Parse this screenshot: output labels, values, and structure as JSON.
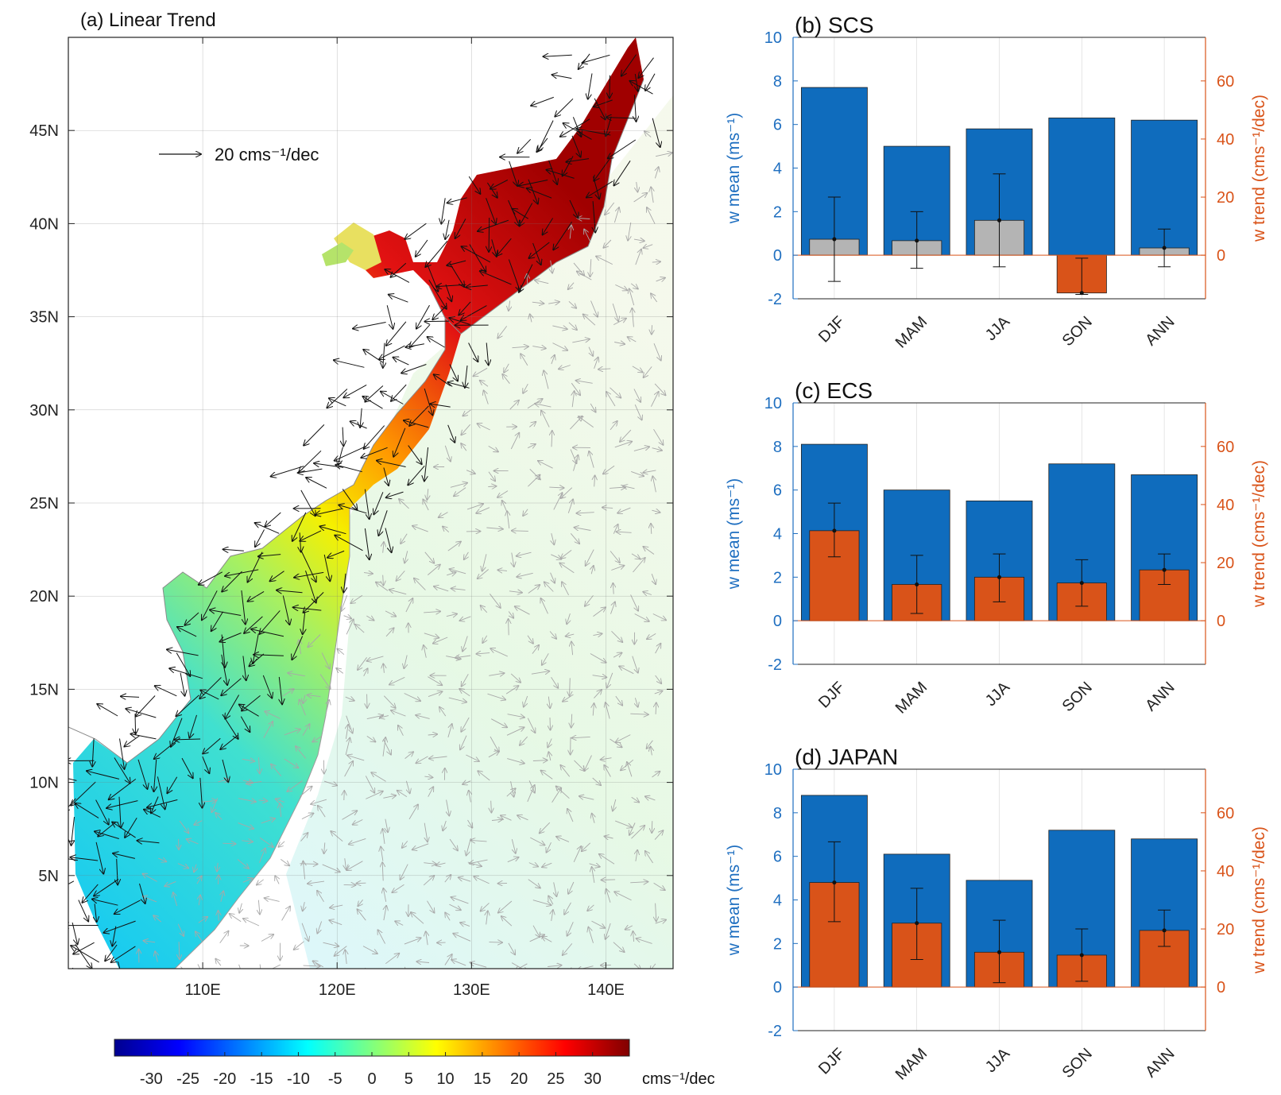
{
  "colors": {
    "mean_bar": "#0F6CBD",
    "trend_pos": "#D95319",
    "trend_insig": "#B4B4B4",
    "left_axis": "#1F6FC0",
    "right_axis": "#D95319"
  },
  "chart_data": [
    {
      "panel": "a",
      "type": "heatmap",
      "title": "(a) Linear Trend",
      "x_ticks": [
        "110E",
        "120E",
        "130E",
        "140E"
      ],
      "x_tick_values": [
        110,
        120,
        130,
        140
      ],
      "y_ticks": [
        "5N",
        "10N",
        "15N",
        "20N",
        "25N",
        "30N",
        "35N",
        "40N",
        "45N"
      ],
      "y_tick_values": [
        5,
        10,
        15,
        20,
        25,
        30,
        35,
        40,
        45
      ],
      "xlim": [
        100,
        145
      ],
      "ylim": [
        0,
        50
      ],
      "reference_vector": "20 cms⁻¹/dec",
      "colorbar": {
        "min": -35,
        "max": 35,
        "ticks": [
          -30,
          -25,
          -20,
          -15,
          -10,
          -5,
          0,
          5,
          10,
          15,
          20,
          25,
          30
        ],
        "tick_labels": [
          "-30",
          "-25",
          "-20",
          "-15",
          "-10",
          "-5",
          "0",
          "5",
          "10",
          "15",
          "20",
          "25",
          "30"
        ],
        "unit": "cms⁻¹/dec",
        "colormap": "jet"
      }
    },
    {
      "panel": "b",
      "type": "bar",
      "title": "(b)  SCS",
      "categories": [
        "DJF",
        "MAM",
        "JJA",
        "SON",
        "ANN"
      ],
      "ylabel_left": "w mean (ms⁻¹)",
      "ylabel_right": "w trend (cms⁻¹/dec)",
      "ylim_left": [
        -2,
        10
      ],
      "ylim_right": [
        -15,
        75
      ],
      "yticks_left": [
        -2,
        0,
        2,
        4,
        6,
        8,
        10
      ],
      "yticks_right": [
        0,
        20,
        40,
        60
      ],
      "series": [
        {
          "name": "w mean",
          "axis": "left",
          "values": [
            7.7,
            5.0,
            5.8,
            6.3,
            6.2
          ]
        },
        {
          "name": "w trend",
          "axis": "right",
          "values": [
            5.5,
            5.0,
            12.0,
            -13.0,
            2.5
          ],
          "lower": [
            -9,
            -4.5,
            -4,
            -13.5,
            -4
          ],
          "upper": [
            20,
            15,
            28,
            -1,
            9
          ],
          "significant": [
            false,
            false,
            false,
            true,
            false
          ]
        }
      ]
    },
    {
      "panel": "c",
      "type": "bar",
      "title": "(c)  ECS",
      "categories": [
        "DJF",
        "MAM",
        "JJA",
        "SON",
        "ANN"
      ],
      "ylabel_left": "w mean (ms⁻¹)",
      "ylabel_right": "w trend (cms⁻¹/dec)",
      "ylim_left": [
        -2,
        10
      ],
      "ylim_right": [
        -15,
        75
      ],
      "yticks_left": [
        -2,
        0,
        2,
        4,
        6,
        8,
        10
      ],
      "yticks_right": [
        0,
        20,
        40,
        60
      ],
      "series": [
        {
          "name": "w mean",
          "axis": "left",
          "values": [
            8.1,
            6.0,
            5.5,
            7.2,
            6.7
          ]
        },
        {
          "name": "w trend",
          "axis": "right",
          "values": [
            31,
            12.5,
            15,
            13,
            17.5
          ],
          "lower": [
            22,
            2.5,
            6.5,
            5,
            12.5
          ],
          "upper": [
            40.5,
            22.5,
            23,
            21,
            23
          ],
          "significant": [
            true,
            true,
            true,
            true,
            true
          ]
        }
      ]
    },
    {
      "panel": "d",
      "type": "bar",
      "title": "(d)  JAPAN",
      "categories": [
        "DJF",
        "MAM",
        "JJA",
        "SON",
        "ANN"
      ],
      "ylabel_left": "w mean (ms⁻¹)",
      "ylabel_right": "w trend (cms⁻¹/dec)",
      "ylim_left": [
        -2,
        10
      ],
      "ylim_right": [
        -15,
        75
      ],
      "yticks_left": [
        -2,
        0,
        2,
        4,
        6,
        8,
        10
      ],
      "yticks_right": [
        0,
        20,
        40,
        60
      ],
      "series": [
        {
          "name": "w mean",
          "axis": "left",
          "values": [
            8.8,
            6.1,
            4.9,
            7.2,
            6.8
          ]
        },
        {
          "name": "w trend",
          "axis": "right",
          "values": [
            36,
            22,
            12,
            11,
            19.5
          ],
          "lower": [
            22.5,
            9.5,
            1.5,
            2,
            14
          ],
          "upper": [
            50,
            34,
            23,
            20,
            26.5
          ],
          "significant": [
            true,
            true,
            true,
            true,
            true
          ]
        }
      ]
    }
  ]
}
